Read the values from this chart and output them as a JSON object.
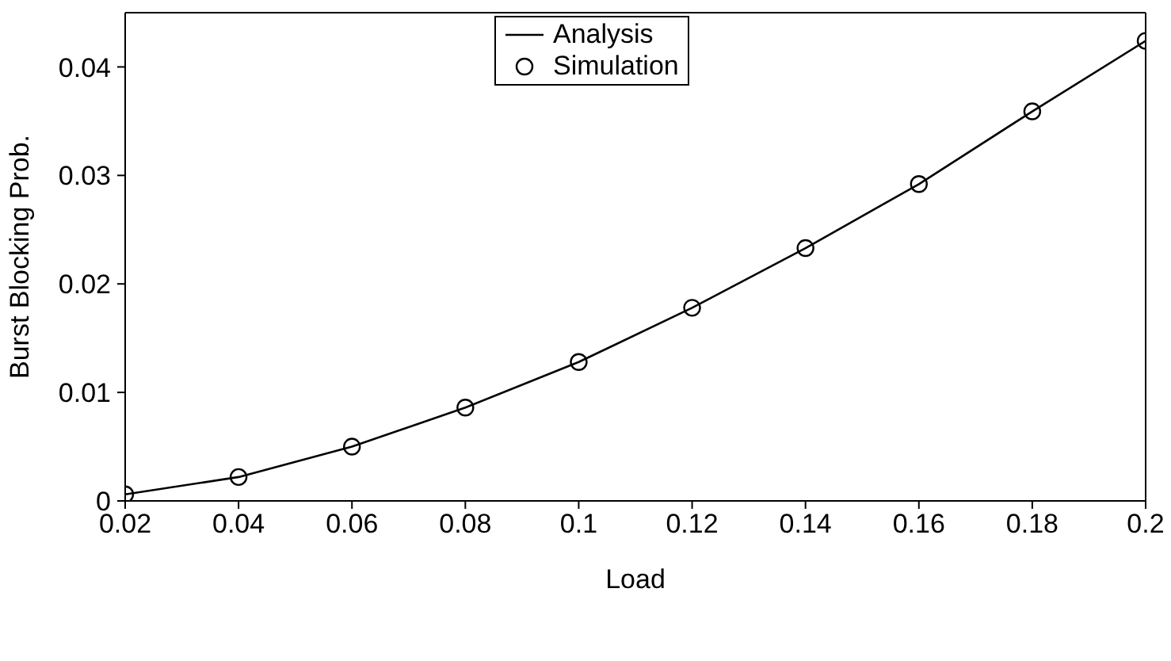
{
  "chart_data": {
    "type": "line",
    "xlabel": "Load",
    "ylabel": "Burst Blocking Prob.",
    "x": [
      0.02,
      0.04,
      0.06,
      0.08,
      0.1,
      0.12,
      0.14,
      0.16,
      0.18,
      0.2
    ],
    "series": [
      {
        "name": "Analysis",
        "color": "#000000",
        "marker": "none",
        "values": [
          0.0006,
          0.0022,
          0.005,
          0.0086,
          0.0128,
          0.0178,
          0.0233,
          0.0292,
          0.0359,
          0.0424
        ]
      },
      {
        "name": "Simulation",
        "type": "scatter",
        "color": "#000000",
        "marker": "circle",
        "values": [
          0.0006,
          0.0022,
          0.005,
          0.0086,
          0.0128,
          0.0178,
          0.0233,
          0.0292,
          0.0359,
          0.0424
        ]
      }
    ],
    "xlim": [
      0.02,
      0.2
    ],
    "xticks": [
      0.02,
      0.04,
      0.06,
      0.08,
      0.1,
      0.12,
      0.14,
      0.16,
      0.18,
      0.2
    ],
    "ylim": [
      0,
      0.045
    ],
    "yticks": [
      0,
      0.01,
      0.02,
      0.03,
      0.04
    ],
    "legend": "top"
  }
}
